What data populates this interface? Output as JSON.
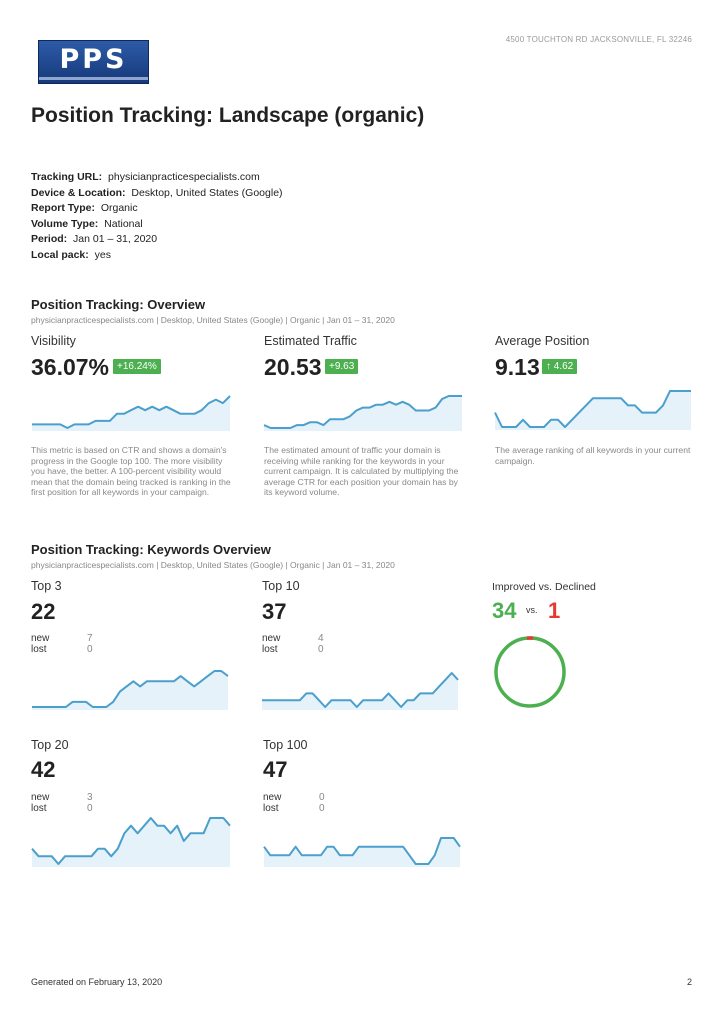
{
  "header": {
    "address": "4500 TOUCHTON RD JACKSONVILLE, FL 32246",
    "logo_text": "PPS"
  },
  "title": "Position Tracking: Landscape (organic)",
  "meta": [
    {
      "label": "Tracking URL:",
      "value": "physicianpracticespecialists.com"
    },
    {
      "label": "Device & Location:",
      "value": "Desktop, United States (Google)"
    },
    {
      "label": "Report Type:",
      "value": "Organic"
    },
    {
      "label": "Volume Type:",
      "value": "National"
    },
    {
      "label": "Period:",
      "value": "Jan 01 – 31, 2020"
    },
    {
      "label": "Local pack:",
      "value": "yes"
    }
  ],
  "overview": {
    "title": "Position Tracking: Overview",
    "subtitle": "physicianpracticespecialists.com | Desktop, United States (Google) | Organic | Jan 01 – 31, 2020",
    "cards": [
      {
        "label": "Visibility",
        "value": "36.07%",
        "badge": "+16.24%",
        "desc": "This metric is based on CTR and shows a domain's progress in the Google top 100. The more visibility you have, the better. A 100-percent visibility would mean that the domain being tracked is ranking in the first position for all keywords in your campaign.",
        "series": [
          30,
          30,
          30,
          30,
          30,
          29,
          30,
          30,
          30,
          31,
          31,
          31,
          33,
          33,
          34,
          35,
          34,
          35,
          34,
          35,
          34,
          33,
          33,
          33,
          34,
          36,
          37,
          36,
          38
        ]
      },
      {
        "label": "Estimated Traffic",
        "value": "20.53",
        "badge": "+9.63",
        "desc": "The estimated amount of traffic your domain is receiving while ranking for the keywords in your current campaign. It is calculated by multiplying the average CTR for each position your domain has by its keyword volume.",
        "series": [
          12,
          11,
          11,
          11,
          11,
          12,
          12,
          13,
          13,
          12,
          14,
          14,
          14,
          15,
          17,
          18,
          18,
          19,
          19,
          20,
          19,
          20,
          19,
          17,
          17,
          17,
          18,
          21,
          22,
          22,
          22
        ]
      },
      {
        "label": "Average Position",
        "value": "9.13",
        "badge": "↑ 4.62",
        "desc": "The average ranking of all keywords in your current campaign.",
        "series": [
          11,
          13,
          13,
          13,
          12,
          13,
          13,
          13,
          12,
          12,
          13,
          12,
          11,
          10,
          9,
          9,
          9,
          9,
          9,
          10,
          10,
          11,
          11,
          11,
          10,
          8,
          8,
          8,
          8
        ]
      }
    ]
  },
  "keywords": {
    "title": "Position Tracking: Keywords Overview",
    "subtitle": "physicianpracticespecialists.com | Desktop, United States (Google) | Organic | Jan 01 – 31, 2020",
    "cards": [
      {
        "label": "Top 3",
        "value": "22",
        "new_label": "new",
        "new": "7",
        "lost_label": "lost",
        "lost": "0",
        "series": [
          15,
          15,
          15,
          15,
          15,
          15,
          16,
          16,
          16,
          15,
          15,
          15,
          16,
          18,
          19,
          20,
          19,
          20,
          20,
          20,
          20,
          20,
          21,
          20,
          19,
          20,
          21,
          22,
          22,
          21
        ]
      },
      {
        "label": "Top 10",
        "value": "37",
        "new_label": "new",
        "new": "4",
        "lost_label": "lost",
        "lost": "0",
        "series": [
          33,
          33,
          33,
          33,
          33,
          33,
          33,
          34,
          34,
          33,
          32,
          33,
          33,
          33,
          33,
          32,
          33,
          33,
          33,
          33,
          34,
          33,
          32,
          33,
          33,
          34,
          34,
          34,
          35,
          36,
          37,
          36
        ]
      },
      {
        "label": "Top 20",
        "value": "42",
        "new_label": "new",
        "new": "3",
        "lost_label": "lost",
        "lost": "0",
        "series": [
          38,
          37,
          37,
          37,
          36,
          37,
          37,
          37,
          37,
          37,
          38,
          38,
          37,
          38,
          40,
          41,
          40,
          41,
          42,
          41,
          41,
          40,
          41,
          39,
          40,
          40,
          40,
          42,
          42,
          42,
          41
        ]
      },
      {
        "label": "Top 100",
        "value": "47",
        "new_label": "new",
        "new": "0",
        "lost_label": "lost",
        "lost": "0",
        "series": [
          46,
          45,
          45,
          45,
          45,
          46,
          45,
          45,
          45,
          45,
          46,
          46,
          45,
          45,
          45,
          46,
          46,
          46,
          46,
          46,
          46,
          46,
          46,
          45,
          44,
          44,
          44,
          45,
          47,
          47,
          47,
          46
        ]
      }
    ],
    "improved": {
      "label": "Improved vs. Declined",
      "improved": 34,
      "vs": "vs.",
      "declined": 1
    }
  },
  "footer": {
    "generated": "Generated on February 13, 2020",
    "page": "2"
  },
  "colors": {
    "line": "#4a9fcc",
    "fill": "#e6f2fa",
    "green": "#4caf50",
    "red": "#e53935"
  }
}
